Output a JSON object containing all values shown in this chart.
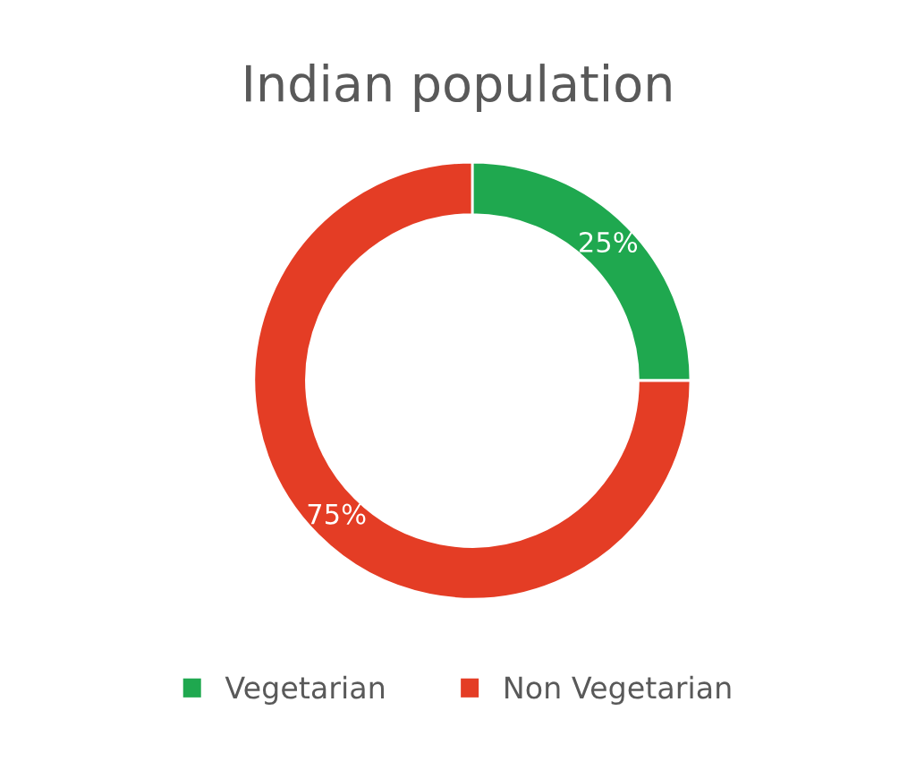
{
  "chart_data": {
    "type": "donut",
    "title": "Indian population",
    "categories": [
      "Vegetarian",
      "Non Vegetarian"
    ],
    "values": [
      25,
      75
    ],
    "colors": [
      "#1fa84f",
      "#e43d25"
    ],
    "value_labels": [
      "25%",
      "75%"
    ],
    "legend": "bottom"
  }
}
